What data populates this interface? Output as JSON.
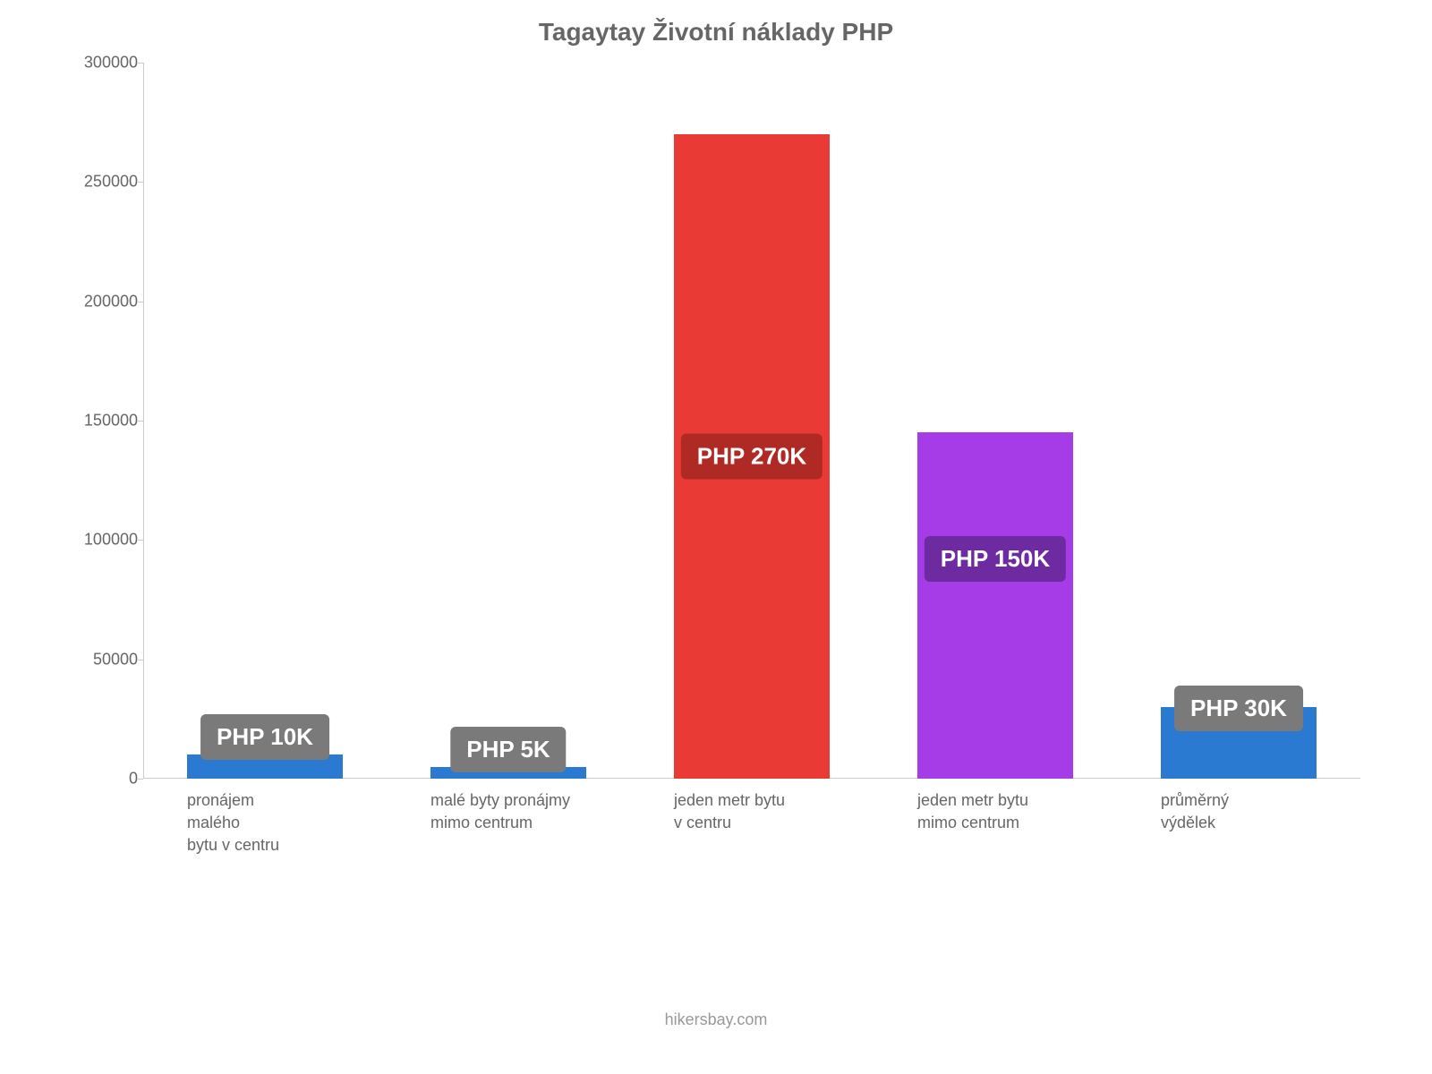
{
  "chart": {
    "type": "bar",
    "title": "Tagaytay Životní náklady PHP",
    "title_fontsize": 28,
    "title_color": "#666666",
    "background_color": "#ffffff",
    "axis_line_color": "#cccccc",
    "tick_label_color": "#666666",
    "tick_fontsize": 18,
    "xlabel_color": "#666666",
    "xlabel_fontsize": 18,
    "ylim": [
      0,
      300000
    ],
    "ytick_step": 50000,
    "yticks": [
      {
        "value": 0,
        "label": "0"
      },
      {
        "value": 50000,
        "label": "50000"
      },
      {
        "value": 100000,
        "label": "100000"
      },
      {
        "value": 150000,
        "label": "150000"
      },
      {
        "value": 200000,
        "label": "200000"
      },
      {
        "value": 250000,
        "label": "250000"
      },
      {
        "value": 300000,
        "label": "300000"
      }
    ],
    "bar_width": 0.64,
    "value_label_fontsize": 26,
    "value_label_text_color": "#ffffff",
    "value_label_radius": 6,
    "bars": [
      {
        "category": "pronájem\nmalého\nbytu v centru",
        "value": 10000,
        "value_label": "PHP 10K",
        "color": "#2a7ad2",
        "label_bg": "#7a7a7a",
        "label_offset_mode": "above"
      },
      {
        "category": "malé byty pronájmy\nmimo centrum",
        "value": 5000,
        "value_label": "PHP 5K",
        "color": "#2a7ad2",
        "label_bg": "#7a7a7a",
        "label_offset_mode": "above"
      },
      {
        "category": "jeden metr bytu\nv centru",
        "value": 270000,
        "value_label": "PHP 270K",
        "color": "#ea3a35",
        "label_bg": "#b02a25",
        "label_offset_mode": "center"
      },
      {
        "category": "jeden metr bytu\nmimo centrum",
        "value": 145000,
        "value_label": "PHP 150K",
        "color": "#a63be8",
        "label_bg": "#6e2aa0",
        "label_offset_mode": "top-inside"
      },
      {
        "category": "průměrný\nvýdělek",
        "value": 30000,
        "value_label": "PHP 30K",
        "color": "#2a7ad2",
        "label_bg": "#7a7a7a",
        "label_offset_mode": "overlap"
      }
    ]
  },
  "footer": {
    "text": "hikersbay.com",
    "color": "#999999",
    "fontsize": 18
  }
}
